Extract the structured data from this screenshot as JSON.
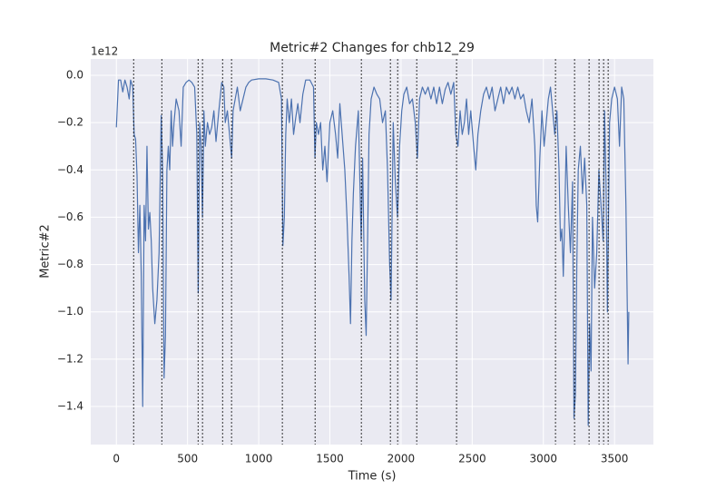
{
  "chart_data": {
    "type": "line",
    "title": "Metric#2 Changes for chb12_29",
    "xlabel": "Time (s)",
    "ylabel": "Metric#2",
    "y_offset_label": "1e12",
    "color": "#4c72b0",
    "vline_color": "#000000",
    "grid": true,
    "xlim": [
      -180,
      3773
    ],
    "ylim": [
      -1.561,
      0.069
    ],
    "xticks": [
      0,
      500,
      1000,
      1500,
      2000,
      2500,
      3000,
      3500
    ],
    "yticks": [
      {
        "value": 0,
        "label": "0.0"
      },
      {
        "value": -0.2,
        "label": "−0.2"
      },
      {
        "value": -0.4,
        "label": "−0.4"
      },
      {
        "value": -0.6,
        "label": "−0.6"
      },
      {
        "value": -0.8,
        "label": "−0.8"
      },
      {
        "value": -1.0,
        "label": "−1.0"
      },
      {
        "value": -1.2,
        "label": "−1.2"
      },
      {
        "value": -1.4,
        "label": "−1.4"
      }
    ],
    "vlines": [
      121,
      319,
      574,
      605,
      746,
      809,
      1166,
      1396,
      1721,
      1925,
      1976,
      2110,
      2390,
      3085,
      3219,
      3321,
      3391,
      3423,
      3455
    ],
    "x": [
      0,
      15,
      30,
      45,
      60,
      75,
      90,
      100,
      115,
      125,
      135,
      145,
      155,
      165,
      175,
      185,
      195,
      205,
      215,
      225,
      235,
      245,
      255,
      270,
      285,
      300,
      315,
      325,
      335,
      345,
      355,
      365,
      375,
      385,
      395,
      405,
      420,
      440,
      455,
      470,
      490,
      510,
      530,
      550,
      565,
      575,
      585,
      595,
      605,
      615,
      625,
      640,
      655,
      670,
      685,
      700,
      720,
      740,
      755,
      765,
      780,
      795,
      810,
      820,
      835,
      850,
      870,
      890,
      910,
      930,
      950,
      1000,
      1050,
      1100,
      1140,
      1160,
      1170,
      1180,
      1190,
      1200,
      1215,
      1230,
      1245,
      1260,
      1275,
      1290,
      1310,
      1330,
      1360,
      1385,
      1395,
      1405,
      1420,
      1435,
      1450,
      1465,
      1480,
      1500,
      1520,
      1540,
      1555,
      1570,
      1590,
      1605,
      1620,
      1635,
      1645,
      1655,
      1665,
      1680,
      1700,
      1720,
      1730,
      1745,
      1755,
      1765,
      1775,
      1790,
      1810,
      1830,
      1850,
      1870,
      1890,
      1905,
      1920,
      1930,
      1945,
      1960,
      1975,
      1990,
      2005,
      2020,
      2040,
      2060,
      2080,
      2100,
      2115,
      2130,
      2150,
      2170,
      2190,
      2210,
      2230,
      2250,
      2270,
      2290,
      2310,
      2330,
      2350,
      2370,
      2385,
      2400,
      2415,
      2430,
      2445,
      2460,
      2475,
      2490,
      2510,
      2525,
      2540,
      2560,
      2580,
      2600,
      2620,
      2640,
      2660,
      2680,
      2700,
      2720,
      2740,
      2760,
      2780,
      2800,
      2820,
      2840,
      2860,
      2880,
      2900,
      2920,
      2940,
      2950,
      2960,
      2975,
      2990,
      3005,
      3020,
      3035,
      3050,
      3065,
      3080,
      3095,
      3110,
      3120,
      3130,
      3140,
      3150,
      3160,
      3175,
      3190,
      3205,
      3215,
      3225,
      3235,
      3245,
      3260,
      3275,
      3290,
      3305,
      3315,
      3325,
      3335,
      3345,
      3360,
      3375,
      3390,
      3405,
      3420,
      3430,
      3440,
      3450,
      3465,
      3480,
      3500,
      3520,
      3535,
      3550,
      3565,
      3580,
      3595,
      3600
    ],
    "values": [
      -0.22,
      -0.02,
      -0.02,
      -0.07,
      -0.02,
      -0.05,
      -0.1,
      -0.02,
      -0.05,
      -0.25,
      -0.27,
      -0.42,
      -0.75,
      -0.55,
      -0.85,
      -1.4,
      -0.55,
      -0.7,
      -0.3,
      -0.65,
      -0.58,
      -0.7,
      -0.9,
      -1.05,
      -0.95,
      -0.75,
      -0.17,
      -0.4,
      -1.28,
      -1.1,
      -0.4,
      -0.3,
      -0.4,
      -0.15,
      -0.3,
      -0.2,
      -0.1,
      -0.15,
      -0.3,
      -0.05,
      -0.03,
      -0.02,
      -0.03,
      -0.05,
      -0.25,
      -0.92,
      -0.2,
      -0.3,
      -0.6,
      -0.15,
      -0.3,
      -0.2,
      -0.25,
      -0.22,
      -0.15,
      -0.28,
      -0.15,
      -0.03,
      -0.05,
      -0.2,
      -0.15,
      -0.25,
      -0.35,
      -0.15,
      -0.1,
      -0.05,
      -0.15,
      -0.1,
      -0.05,
      -0.03,
      -0.02,
      -0.015,
      -0.015,
      -0.02,
      -0.03,
      -0.1,
      -0.72,
      -0.6,
      -0.25,
      -0.1,
      -0.2,
      -0.1,
      -0.25,
      -0.18,
      -0.12,
      -0.2,
      -0.08,
      -0.02,
      -0.02,
      -0.05,
      -0.35,
      -0.2,
      -0.25,
      -0.2,
      -0.4,
      -0.3,
      -0.45,
      -0.2,
      -0.15,
      -0.25,
      -0.35,
      -0.12,
      -0.28,
      -0.4,
      -0.6,
      -0.85,
      -1.05,
      -0.7,
      -0.5,
      -0.3,
      -0.15,
      -0.7,
      -0.35,
      -0.95,
      -1.1,
      -0.7,
      -0.25,
      -0.1,
      -0.05,
      -0.08,
      -0.1,
      -0.2,
      -0.15,
      -0.4,
      -0.8,
      -0.95,
      -0.2,
      -0.45,
      -0.6,
      -0.3,
      -0.15,
      -0.08,
      -0.05,
      -0.12,
      -0.1,
      -0.2,
      -0.35,
      -0.1,
      -0.05,
      -0.08,
      -0.05,
      -0.1,
      -0.05,
      -0.12,
      -0.05,
      -0.12,
      -0.06,
      -0.03,
      -0.08,
      -0.03,
      -0.25,
      -0.3,
      -0.15,
      -0.25,
      -0.2,
      -0.1,
      -0.25,
      -0.15,
      -0.3,
      -0.4,
      -0.25,
      -0.15,
      -0.08,
      -0.05,
      -0.1,
      -0.05,
      -0.15,
      -0.1,
      -0.05,
      -0.12,
      -0.05,
      -0.08,
      -0.05,
      -0.1,
      -0.05,
      -0.1,
      -0.08,
      -0.15,
      -0.2,
      -0.1,
      -0.3,
      -0.55,
      -0.62,
      -0.35,
      -0.15,
      -0.3,
      -0.2,
      -0.1,
      -0.05,
      -0.15,
      -0.25,
      -0.15,
      -0.4,
      -0.7,
      -0.65,
      -0.85,
      -0.6,
      -0.3,
      -0.55,
      -0.75,
      -0.45,
      -1.45,
      -1.35,
      -0.8,
      -0.4,
      -0.3,
      -0.5,
      -0.35,
      -0.55,
      -1.48,
      -1.05,
      -1.25,
      -0.6,
      -0.9,
      -0.75,
      -0.4,
      -0.55,
      -0.7,
      -0.15,
      -0.45,
      -1.0,
      -0.2,
      -0.1,
      -0.05,
      -0.1,
      -0.3,
      -0.05,
      -0.1,
      -0.55,
      -1.22,
      -1.0
    ]
  }
}
